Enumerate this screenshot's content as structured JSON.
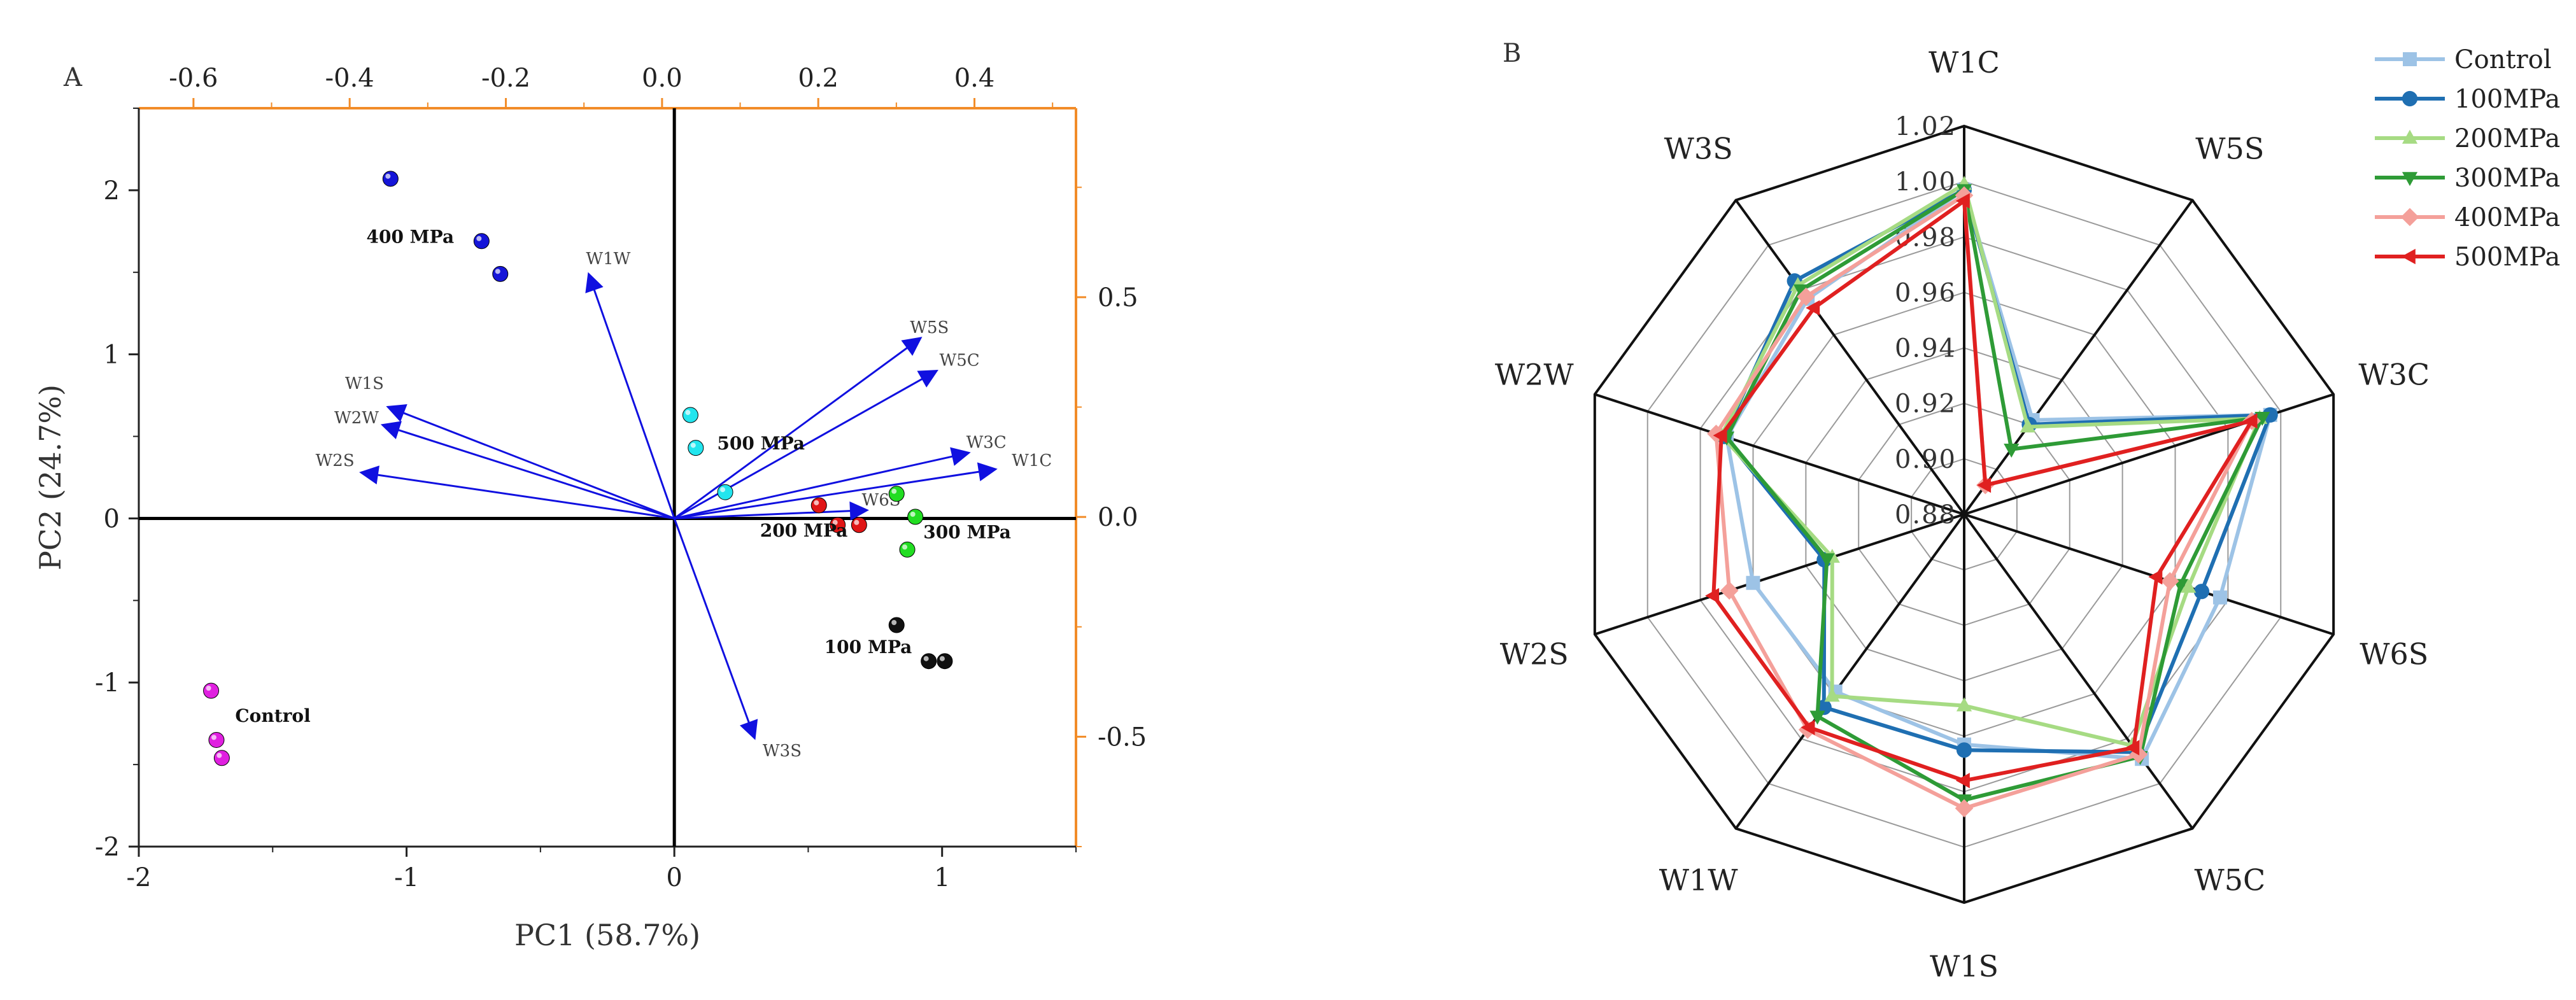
{
  "chart_data": [
    {
      "type": "scatter",
      "panel_label": "A",
      "xlabel": "PC1 (58.7%)",
      "ylabel": "PC2 (24.7%)",
      "xlim": [
        -2,
        1.5
      ],
      "ylim": [
        -2,
        2.5
      ],
      "xticks": [
        -2,
        -1,
        0,
        1
      ],
      "yticks": [
        -2,
        -1,
        0,
        1,
        2
      ],
      "xticklabels": [
        "-2",
        "-1",
        "0",
        "1"
      ],
      "yticklabels": [
        "-2",
        "-1",
        "0",
        "1",
        "2"
      ],
      "top_axis": {
        "lim": [
          -0.67,
          0.53
        ],
        "ticks": [
          -0.6,
          -0.4,
          -0.2,
          0.0,
          0.2,
          0.4
        ],
        "ticklabels": [
          "-0.6",
          "-0.4",
          "-0.2",
          "0.0",
          "0.2",
          "0.4"
        ],
        "color": "#F28C28"
      },
      "right_axis": {
        "lim": [
          -0.75,
          0.93
        ],
        "ticks": [
          -0.5,
          0.0,
          0.5
        ],
        "ticklabels": [
          "-0.5",
          "0.0",
          "0.5"
        ],
        "color": "#F28C28"
      },
      "groups": [
        {
          "label": "400 MPa",
          "color": "#1515D8",
          "points": [
            [
              -1.06,
              2.07
            ],
            [
              -0.72,
              1.69
            ],
            [
              -0.65,
              1.49
            ]
          ],
          "label_at": [
            -1.15,
            1.68
          ]
        },
        {
          "label": "500 MPa",
          "color": "#22E5EE",
          "points": [
            [
              0.06,
              0.63
            ],
            [
              0.08,
              0.43
            ],
            [
              0.19,
              0.16
            ]
          ],
          "label_at": [
            0.16,
            0.42
          ]
        },
        {
          "label": "200 MPa",
          "color": "#E01515",
          "points": [
            [
              0.54,
              0.08
            ],
            [
              0.61,
              -0.04
            ],
            [
              0.69,
              -0.04
            ]
          ],
          "label_at": [
            0.32,
            -0.11
          ]
        },
        {
          "label": "300 MPa",
          "color": "#22DD22",
          "points": [
            [
              0.83,
              0.15
            ],
            [
              0.9,
              0.01
            ],
            [
              0.87,
              -0.19
            ]
          ],
          "label_at": [
            0.93,
            -0.12
          ]
        },
        {
          "label": "100 MPa",
          "color": "#111111",
          "points": [
            [
              0.83,
              -0.65
            ],
            [
              0.95,
              -0.87
            ],
            [
              1.01,
              -0.87
            ]
          ],
          "label_at": [
            0.56,
            -0.82
          ]
        },
        {
          "label": "Control",
          "color": "#E020E0",
          "points": [
            [
              -1.73,
              -1.05
            ],
            [
              -1.71,
              -1.35
            ],
            [
              -1.69,
              -1.46
            ]
          ],
          "label_at": [
            -1.64,
            -1.24
          ]
        }
      ],
      "loadings": [
        {
          "name": "W1W",
          "x": -0.32,
          "y": 1.49,
          "label_at": [
            -0.33,
            1.55
          ]
        },
        {
          "name": "W1S",
          "x": -1.07,
          "y": 0.68,
          "label_at": [
            -1.23,
            0.79
          ]
        },
        {
          "name": "W2W",
          "x": -1.09,
          "y": 0.57,
          "label_at": [
            -1.27,
            0.58
          ]
        },
        {
          "name": "W2S",
          "x": -1.17,
          "y": 0.28,
          "label_at": [
            -1.34,
            0.32
          ]
        },
        {
          "name": "W5S",
          "x": 0.92,
          "y": 1.1,
          "label_at": [
            0.88,
            1.13
          ]
        },
        {
          "name": "W5C",
          "x": 0.98,
          "y": 0.9,
          "label_at": [
            0.99,
            0.93
          ]
        },
        {
          "name": "W3C",
          "x": 1.1,
          "y": 0.4,
          "label_at": [
            1.09,
            0.43
          ]
        },
        {
          "name": "W1C",
          "x": 1.2,
          "y": 0.3,
          "label_at": [
            1.26,
            0.32
          ]
        },
        {
          "name": "W6S",
          "x": 0.72,
          "y": 0.05,
          "label_at": [
            0.7,
            0.08
          ]
        },
        {
          "name": "W3S",
          "x": 0.3,
          "y": -1.34,
          "label_at": [
            0.33,
            -1.45
          ]
        }
      ],
      "grid": false
    },
    {
      "type": "radar",
      "panel_label": "B",
      "axes": [
        "W1C",
        "W5S",
        "W3C",
        "W6S",
        "W5C",
        "W1S",
        "W1W",
        "W2S",
        "W2W",
        "W3S"
      ],
      "r_range": [
        0.88,
        1.02
      ],
      "r_ticks": [
        0.88,
        0.9,
        0.92,
        0.94,
        0.96,
        0.98,
        1.0,
        1.02
      ],
      "r_ticklabels": [
        "0.88",
        "0.90",
        "0.92",
        "0.94",
        "0.96",
        "0.98",
        "1.00",
        "1.02"
      ],
      "legend": "top-right",
      "series": [
        {
          "name": "Control",
          "color": "#9DC3E6",
          "marker": "square",
          "values": [
            0.997,
            0.922,
            0.996,
            0.977,
            0.989,
            0.963,
            0.959,
            0.96,
            0.97,
            0.976
          ]
        },
        {
          "name": "100MPa",
          "color": "#1F6FB2",
          "marker": "circle",
          "values": [
            0.997,
            0.92,
            0.996,
            0.97,
            0.986,
            0.965,
            0.966,
            0.933,
            0.971,
            0.984
          ]
        },
        {
          "name": "200MPa",
          "color": "#A6DB83",
          "marker": "triangle-up",
          "values": [
            0.999,
            0.919,
            0.992,
            0.965,
            0.983,
            0.949,
            0.961,
            0.93,
            0.972,
            0.982
          ]
        },
        {
          "name": "300MPa",
          "color": "#2E9B36",
          "marker": "triangle-down",
          "values": [
            0.997,
            0.909,
            0.993,
            0.962,
            0.988,
            0.983,
            0.97,
            0.932,
            0.97,
            0.98
          ]
        },
        {
          "name": "400MPa",
          "color": "#F4A09A",
          "marker": "diamond",
          "values": [
            0.995,
            0.893,
            0.989,
            0.958,
            0.987,
            0.986,
            0.976,
            0.969,
            0.974,
            0.977
          ]
        },
        {
          "name": "500MPa",
          "color": "#E02020",
          "marker": "triangle-left",
          "values": [
            0.993,
            0.893,
            0.989,
            0.953,
            0.984,
            0.976,
            0.975,
            0.975,
            0.972,
            0.972
          ]
        }
      ]
    }
  ]
}
